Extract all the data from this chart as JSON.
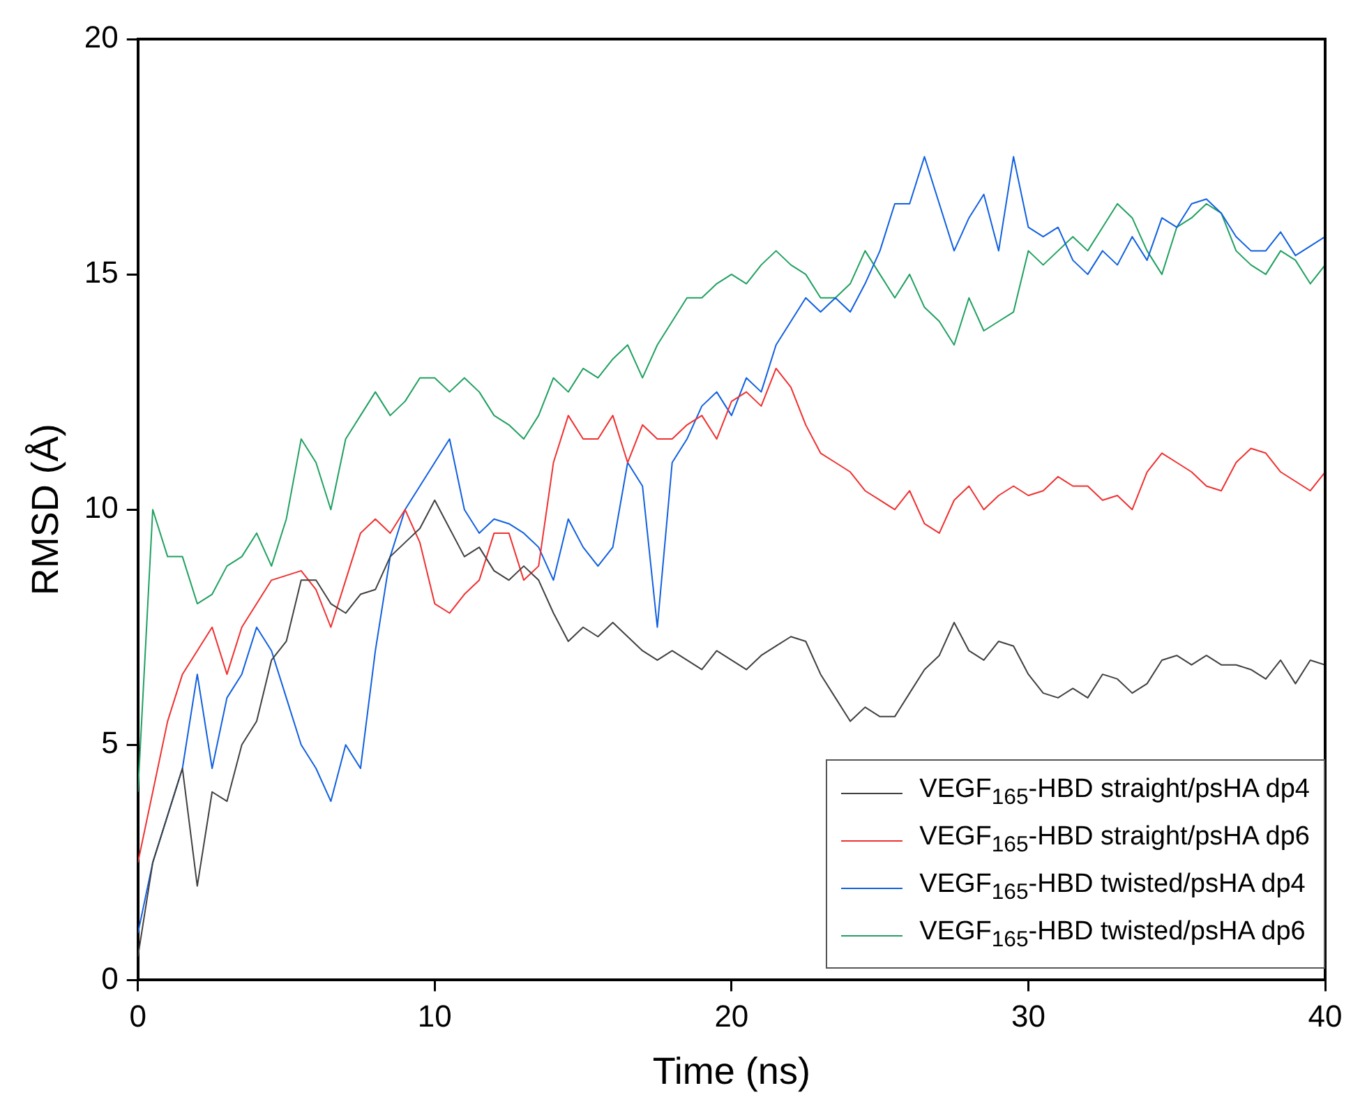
{
  "chart_data": {
    "type": "line",
    "xlabel": "Time (ns)",
    "ylabel": "RMSD (Å)",
    "xlim": [
      0,
      40
    ],
    "xticks": [
      0,
      10,
      20,
      30,
      40
    ],
    "ylim": [
      0,
      20
    ],
    "yticks": [
      0,
      5,
      10,
      15,
      20
    ],
    "grid": false,
    "legend": "bottom right",
    "marker": "none",
    "line_style": "solid",
    "x": [
      0,
      0.5,
      1,
      1.5,
      2,
      2.5,
      3,
      3.5,
      4,
      4.5,
      5,
      5.5,
      6,
      6.5,
      7,
      7.5,
      8,
      8.5,
      9,
      9.5,
      10,
      10.5,
      11,
      11.5,
      12,
      12.5,
      13,
      13.5,
      14,
      14.5,
      15,
      15.5,
      16,
      16.5,
      17,
      17.5,
      18,
      18.5,
      19,
      19.5,
      20,
      20.5,
      21,
      21.5,
      22,
      22.5,
      23,
      23.5,
      24,
      24.5,
      25,
      25.5,
      26,
      26.5,
      27,
      27.5,
      28,
      28.5,
      29,
      29.5,
      30,
      30.5,
      31,
      31.5,
      32,
      32.5,
      33,
      33.5,
      34,
      34.5,
      35,
      35.5,
      36,
      36.5,
      37,
      37.5,
      38,
      38.5,
      39,
      39.5,
      40
    ],
    "series": [
      {
        "name": "VEGF$_{165}$-HBD straight/psHA dp4",
        "color": "#404040",
        "values": [
          0.5,
          2.5,
          3.5,
          4.5,
          2,
          4,
          3.8,
          5,
          5.5,
          6.8,
          7.2,
          8.5,
          8.5,
          8,
          7.8,
          8.2,
          8.3,
          9,
          9.3,
          9.6,
          10.2,
          9.6,
          9,
          9.2,
          8.7,
          8.5,
          8.8,
          8.5,
          7.8,
          7.2,
          7.5,
          7.3,
          7.6,
          7.3,
          7,
          6.8,
          7,
          6.8,
          6.6,
          7,
          6.8,
          6.6,
          6.9,
          7.1,
          7.3,
          7.2,
          6.5,
          6,
          5.5,
          5.8,
          5.6,
          5.6,
          6.1,
          6.6,
          6.9,
          7.6,
          7,
          6.8,
          7.2,
          7.1,
          6.5,
          6.1,
          6,
          6.2,
          6,
          6.5,
          6.4,
          6.1,
          6.3,
          6.8,
          6.9,
          6.7,
          6.9,
          6.7,
          6.7,
          6.6,
          6.4,
          6.8,
          6.3,
          6.8,
          6.7
        ]
      },
      {
        "name": "VEGF$_{165}$-HBD straight/psHA dp6",
        "color": "#f03030",
        "values": [
          2.5,
          4,
          5.5,
          6.5,
          7,
          7.5,
          6.5,
          7.5,
          8,
          8.5,
          8.6,
          8.7,
          8.3,
          7.5,
          8.5,
          9.5,
          9.8,
          9.5,
          10,
          9.3,
          8,
          7.8,
          8.2,
          8.5,
          9.5,
          9.5,
          8.5,
          8.8,
          11,
          12,
          11.5,
          11.5,
          12,
          11,
          11.8,
          11.5,
          11.5,
          11.8,
          12,
          11.5,
          12.3,
          12.5,
          12.2,
          13,
          12.6,
          11.8,
          11.2,
          11,
          10.8,
          10.4,
          10.2,
          10,
          10.4,
          9.7,
          9.5,
          10.2,
          10.5,
          10,
          10.3,
          10.5,
          10.3,
          10.4,
          10.7,
          10.5,
          10.5,
          10.2,
          10.3,
          10,
          10.8,
          11.2,
          11,
          10.8,
          10.5,
          10.4,
          11,
          11.3,
          11.2,
          10.8,
          10.6,
          10.4,
          10.8
        ]
      },
      {
        "name": "VEGF$_{165}$-HBD twisted/psHA dp4",
        "color": "#1060e0",
        "values": [
          1,
          2.5,
          3.5,
          4.5,
          6.5,
          4.5,
          6,
          6.5,
          7.5,
          7,
          6,
          5,
          4.5,
          3.8,
          5,
          4.5,
          7,
          9,
          10,
          10.5,
          11,
          11.5,
          10,
          9.5,
          9.8,
          9.7,
          9.5,
          9.2,
          8.5,
          9.8,
          9.2,
          8.8,
          9.2,
          11,
          10.5,
          7.5,
          11,
          11.5,
          12.2,
          12.5,
          12,
          12.8,
          12.5,
          13.5,
          14,
          14.5,
          14.2,
          14.5,
          14.2,
          14.8,
          15.5,
          16.5,
          16.5,
          17.5,
          16.5,
          15.5,
          16.2,
          16.7,
          15.5,
          17.5,
          16,
          15.8,
          16,
          15.3,
          15,
          15.5,
          15.2,
          15.8,
          15.3,
          16.2,
          16,
          16.5,
          16.6,
          16.3,
          15.8,
          15.5,
          15.5,
          15.9,
          15.4,
          15.6,
          15.8
        ]
      },
      {
        "name": "VEGF$_{165}$-HBD twisted/psHA dp6",
        "color": "#20a060",
        "values": [
          4,
          10,
          9,
          9,
          8,
          8.2,
          8.8,
          9,
          9.5,
          8.8,
          9.8,
          11.5,
          11,
          10,
          11.5,
          12,
          12.5,
          12,
          12.3,
          12.8,
          12.8,
          12.5,
          12.8,
          12.5,
          12,
          11.8,
          11.5,
          12,
          12.8,
          12.5,
          13,
          12.8,
          13.2,
          13.5,
          12.8,
          13.5,
          14,
          14.5,
          14.5,
          14.8,
          15,
          14.8,
          15.2,
          15.5,
          15.2,
          15,
          14.5,
          14.5,
          14.8,
          15.5,
          15,
          14.5,
          15,
          14.3,
          14,
          13.5,
          14.5,
          13.8,
          14,
          14.2,
          15.5,
          15.2,
          15.5,
          15.8,
          15.5,
          16,
          16.5,
          16.2,
          15.5,
          15,
          16,
          16.2,
          16.5,
          16.3,
          15.5,
          15.2,
          15,
          15.5,
          15.3,
          14.8,
          15.2
        ]
      }
    ]
  }
}
